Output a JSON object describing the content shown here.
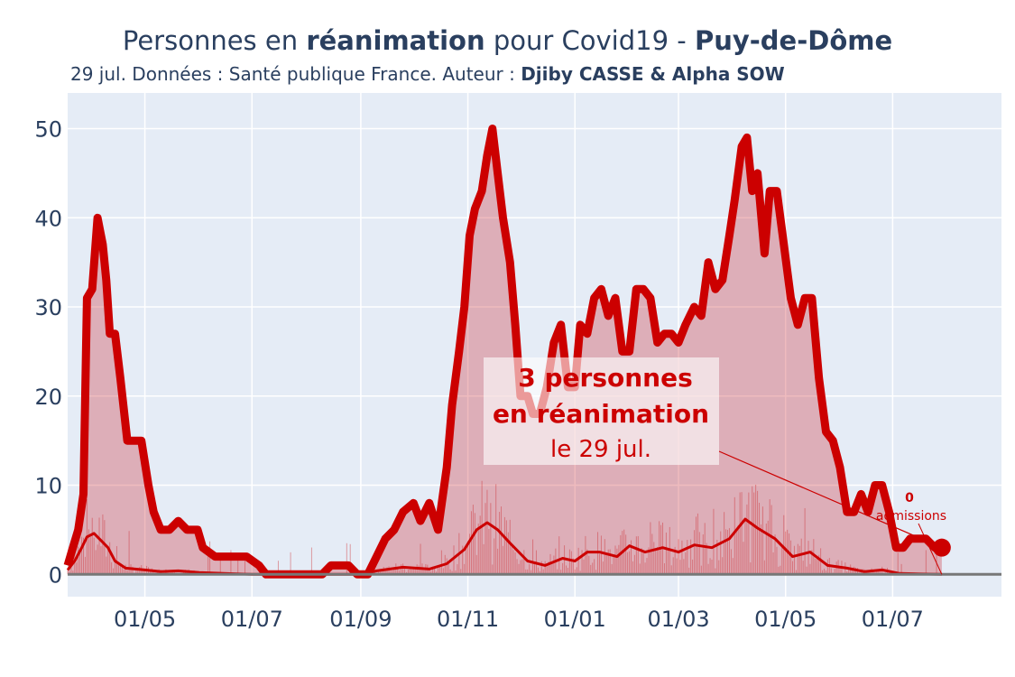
{
  "title": {
    "part1": "Personnes en ",
    "part2": "réanimation",
    "part3": " pour Covid19 - ",
    "part4": "Puy-de-Dôme"
  },
  "subtitle": {
    "text": "29 jul. Données : Santé publique France. Auteur : ",
    "author": "Djiby CASSE & Alpha SOW"
  },
  "annotation": {
    "line1": "3 personnes",
    "line2": "en réanimation",
    "line3": "le 29 jul.",
    "small_value": "0",
    "small_label": "admissions"
  },
  "colors": {
    "line": "#cc0000",
    "fill": "rgba(201,30,40,0.30)",
    "plot_bg": "#e5ecf6",
    "grid": "#ffffff",
    "text": "#2a3f5f"
  },
  "chart_data": {
    "type": "area",
    "xlim": [
      "2020-03-18",
      "2021-09-01"
    ],
    "ylim": [
      -2.5,
      54
    ],
    "y_ticks": [
      0,
      10,
      20,
      30,
      40,
      50
    ],
    "x_ticks": [
      {
        "date": "2020-05-01",
        "label": "01/05"
      },
      {
        "date": "2020-07-01",
        "label": "01/07"
      },
      {
        "date": "2020-09-01",
        "label": "01/09"
      },
      {
        "date": "2020-11-01",
        "label": "01/11"
      },
      {
        "date": "2021-01-01",
        "label": "01/01"
      },
      {
        "date": "2021-03-01",
        "label": "01/03"
      },
      {
        "date": "2021-05-01",
        "label": "01/05"
      },
      {
        "date": "2021-07-01",
        "label": "01/07"
      }
    ],
    "grid": true,
    "series": [
      {
        "role": "reanimation",
        "points": [
          [
            "2020-03-18",
            1
          ],
          [
            "2020-03-21",
            3
          ],
          [
            "2020-03-24",
            5
          ],
          [
            "2020-03-27",
            9
          ],
          [
            "2020-03-29",
            31
          ],
          [
            "2020-04-01",
            32
          ],
          [
            "2020-04-04",
            40
          ],
          [
            "2020-04-07",
            37
          ],
          [
            "2020-04-09",
            33
          ],
          [
            "2020-04-11",
            27
          ],
          [
            "2020-04-14",
            27
          ],
          [
            "2020-04-17",
            22
          ],
          [
            "2020-04-21",
            15
          ],
          [
            "2020-04-25",
            15
          ],
          [
            "2020-04-29",
            15
          ],
          [
            "2020-05-03",
            10
          ],
          [
            "2020-05-06",
            7
          ],
          [
            "2020-05-10",
            5
          ],
          [
            "2020-05-15",
            5
          ],
          [
            "2020-05-20",
            6
          ],
          [
            "2020-05-25",
            5
          ],
          [
            "2020-05-31",
            5
          ],
          [
            "2020-06-03",
            3
          ],
          [
            "2020-06-10",
            2
          ],
          [
            "2020-06-20",
            2
          ],
          [
            "2020-06-28",
            2
          ],
          [
            "2020-07-05",
            1
          ],
          [
            "2020-07-09",
            0
          ],
          [
            "2020-07-20",
            0
          ],
          [
            "2020-08-01",
            0
          ],
          [
            "2020-08-10",
            0
          ],
          [
            "2020-08-15",
            1
          ],
          [
            "2020-08-25",
            1
          ],
          [
            "2020-08-30",
            0
          ],
          [
            "2020-09-05",
            0
          ],
          [
            "2020-09-10",
            2
          ],
          [
            "2020-09-15",
            4
          ],
          [
            "2020-09-20",
            5
          ],
          [
            "2020-09-25",
            7
          ],
          [
            "2020-10-01",
            8
          ],
          [
            "2020-10-05",
            6
          ],
          [
            "2020-10-10",
            8
          ],
          [
            "2020-10-15",
            5
          ],
          [
            "2020-10-20",
            12
          ],
          [
            "2020-10-23",
            19
          ],
          [
            "2020-10-27",
            25
          ],
          [
            "2020-10-30",
            30
          ],
          [
            "2020-11-02",
            38
          ],
          [
            "2020-11-05",
            41
          ],
          [
            "2020-11-09",
            43
          ],
          [
            "2020-11-12",
            47
          ],
          [
            "2020-11-15",
            50
          ],
          [
            "2020-11-18",
            45
          ],
          [
            "2020-11-21",
            40
          ],
          [
            "2020-11-25",
            35
          ],
          [
            "2020-11-28",
            28
          ],
          [
            "2020-12-01",
            20
          ],
          [
            "2020-12-05",
            20
          ],
          [
            "2020-12-08",
            18
          ],
          [
            "2020-12-12",
            18
          ],
          [
            "2020-12-16",
            21
          ],
          [
            "2020-12-20",
            26
          ],
          [
            "2020-12-24",
            28
          ],
          [
            "2020-12-28",
            21
          ],
          [
            "2021-01-01",
            21
          ],
          [
            "2021-01-04",
            28
          ],
          [
            "2021-01-08",
            27
          ],
          [
            "2021-01-12",
            31
          ],
          [
            "2021-01-16",
            32
          ],
          [
            "2021-01-20",
            29
          ],
          [
            "2021-01-24",
            31
          ],
          [
            "2021-01-28",
            25
          ],
          [
            "2021-02-01",
            25
          ],
          [
            "2021-02-05",
            32
          ],
          [
            "2021-02-09",
            32
          ],
          [
            "2021-02-13",
            31
          ],
          [
            "2021-02-17",
            26
          ],
          [
            "2021-02-21",
            27
          ],
          [
            "2021-02-25",
            27
          ],
          [
            "2021-03-01",
            26
          ],
          [
            "2021-03-05",
            28
          ],
          [
            "2021-03-10",
            30
          ],
          [
            "2021-03-14",
            29
          ],
          [
            "2021-03-18",
            35
          ],
          [
            "2021-03-22",
            32
          ],
          [
            "2021-03-26",
            33
          ],
          [
            "2021-03-30",
            38
          ],
          [
            "2021-04-02",
            42
          ],
          [
            "2021-04-06",
            48
          ],
          [
            "2021-04-09",
            49
          ],
          [
            "2021-04-12",
            43
          ],
          [
            "2021-04-15",
            45
          ],
          [
            "2021-04-19",
            36
          ],
          [
            "2021-04-22",
            43
          ],
          [
            "2021-04-26",
            43
          ],
          [
            "2021-04-30",
            37
          ],
          [
            "2021-05-04",
            31
          ],
          [
            "2021-05-08",
            28
          ],
          [
            "2021-05-12",
            31
          ],
          [
            "2021-05-16",
            31
          ],
          [
            "2021-05-20",
            22
          ],
          [
            "2021-05-24",
            16
          ],
          [
            "2021-05-28",
            15
          ],
          [
            "2021-06-01",
            12
          ],
          [
            "2021-06-05",
            7
          ],
          [
            "2021-06-09",
            7
          ],
          [
            "2021-06-13",
            9
          ],
          [
            "2021-06-17",
            7
          ],
          [
            "2021-06-21",
            10
          ],
          [
            "2021-06-25",
            10
          ],
          [
            "2021-06-29",
            7
          ],
          [
            "2021-07-03",
            3
          ],
          [
            "2021-07-07",
            3
          ],
          [
            "2021-07-11",
            4
          ],
          [
            "2021-07-15",
            4
          ],
          [
            "2021-07-20",
            4
          ],
          [
            "2021-07-25",
            3
          ],
          [
            "2021-07-29",
            3
          ]
        ]
      },
      {
        "role": "admissions_average",
        "points": [
          [
            "2020-03-18",
            0.5
          ],
          [
            "2020-03-22",
            1.5
          ],
          [
            "2020-03-26",
            3
          ],
          [
            "2020-03-29",
            4.2
          ],
          [
            "2020-04-02",
            4.6
          ],
          [
            "2020-04-06",
            3.8
          ],
          [
            "2020-04-10",
            3
          ],
          [
            "2020-04-14",
            1.5
          ],
          [
            "2020-04-20",
            0.7
          ],
          [
            "2020-05-01",
            0.5
          ],
          [
            "2020-05-10",
            0.3
          ],
          [
            "2020-05-20",
            0.4
          ],
          [
            "2020-06-01",
            0.2
          ],
          [
            "2020-06-15",
            0.1
          ],
          [
            "2020-07-01",
            0
          ],
          [
            "2020-08-01",
            0
          ],
          [
            "2020-09-01",
            0
          ],
          [
            "2020-09-10",
            0.4
          ],
          [
            "2020-09-25",
            0.8
          ],
          [
            "2020-10-10",
            0.6
          ],
          [
            "2020-10-20",
            1.2
          ],
          [
            "2020-10-30",
            2.8
          ],
          [
            "2020-11-06",
            5
          ],
          [
            "2020-11-12",
            5.8
          ],
          [
            "2020-11-18",
            5
          ],
          [
            "2020-11-25",
            3.5
          ],
          [
            "2020-12-05",
            1.5
          ],
          [
            "2020-12-15",
            1
          ],
          [
            "2020-12-25",
            1.8
          ],
          [
            "2021-01-01",
            1.5
          ],
          [
            "2021-01-08",
            2.5
          ],
          [
            "2021-01-15",
            2.5
          ],
          [
            "2021-01-25",
            2
          ],
          [
            "2021-02-01",
            3.2
          ],
          [
            "2021-02-10",
            2.5
          ],
          [
            "2021-02-20",
            3
          ],
          [
            "2021-03-01",
            2.5
          ],
          [
            "2021-03-10",
            3.3
          ],
          [
            "2021-03-20",
            3
          ],
          [
            "2021-03-30",
            4
          ],
          [
            "2021-04-08",
            6.2
          ],
          [
            "2021-04-15",
            5.2
          ],
          [
            "2021-04-25",
            4
          ],
          [
            "2021-05-05",
            2
          ],
          [
            "2021-05-15",
            2.5
          ],
          [
            "2021-05-25",
            1
          ],
          [
            "2021-06-05",
            0.7
          ],
          [
            "2021-06-15",
            0.3
          ],
          [
            "2021-06-25",
            0.5
          ],
          [
            "2021-07-05",
            0.1
          ],
          [
            "2021-07-29",
            0
          ]
        ]
      }
    ]
  }
}
